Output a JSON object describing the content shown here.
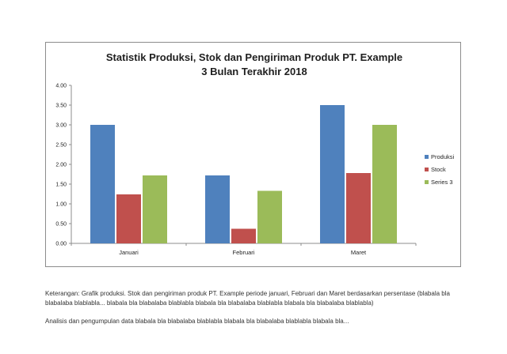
{
  "chart_data": {
    "type": "bar",
    "title": [
      "Statistik Produksi, Stok dan Pengiriman Produk PT. Example",
      "3 Bulan Terakhir 2018"
    ],
    "categories": [
      "Januari",
      "Februari",
      "Maret"
    ],
    "series": [
      {
        "name": "Produksi",
        "color": "#4f81bd",
        "values": [
          3.0,
          1.72,
          3.5
        ]
      },
      {
        "name": "Stock",
        "color": "#c0504d",
        "values": [
          1.24,
          0.37,
          1.78
        ]
      },
      {
        "name": "Series 3",
        "color": "#9bbb59",
        "values": [
          1.72,
          1.33,
          3.0
        ]
      }
    ],
    "ylim": [
      0,
      4
    ],
    "yticks": [
      "0.00",
      "0.50",
      "1.00",
      "1.50",
      "2.00",
      "2.50",
      "3.00",
      "3.50",
      "4.00"
    ],
    "grid": false,
    "legend": "right"
  },
  "captions": {
    "keterangan": "Keterangan: Grafik produksi. Stok dan pengiriman produk PT. Example periode januari, Februari dan Maret berdasarkan persentase (blabala bla blabalaba blablabla... blabala bla blabalaba blablabla blabala bla blabalaba blablabla blabala bla blabalaba blablabla)",
    "analisis": "Analisis dan pengumpulan data blabala bla blabalaba blablabla blabala bla blabalaba blablabla blabala bla..."
  }
}
